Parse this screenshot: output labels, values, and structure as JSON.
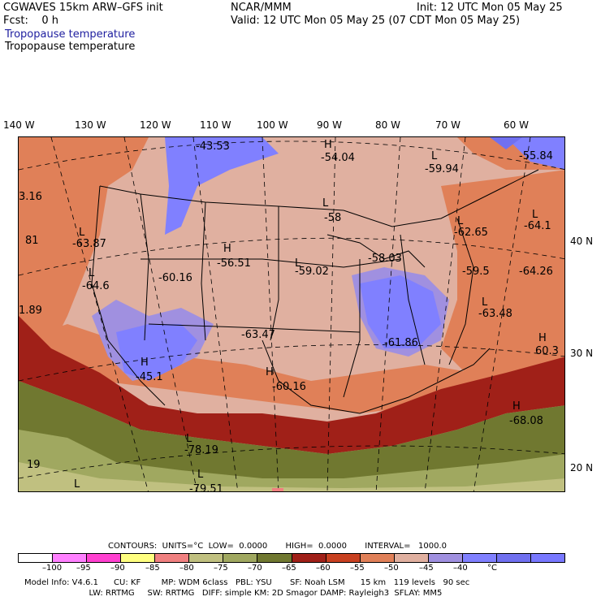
{
  "header": {
    "model": "CGWAVES 15km ARW–GFS init",
    "org": "NCAR/MMM",
    "init": "Init: 12 UTC Mon 05 May 25",
    "fcst": "Fcst:    0 h",
    "valid": "Valid: 12 UTC Mon 05 May 25 (07 CDT Mon 05 May 25)",
    "field_blue": "Tropopause temperature",
    "field_black": "Tropopause temperature"
  },
  "longitudes": [
    "140 W",
    "130 W",
    "120 W",
    "110 W",
    "100 W",
    "90 W",
    "80 W",
    "70 W",
    "60 W"
  ],
  "latitudes": [
    "40 N",
    "30 N",
    "20 N"
  ],
  "map_labels": [
    {
      "t": "-43.53"
    },
    {
      "t": "H"
    },
    {
      "t": "-54.04"
    },
    {
      "t": "L"
    },
    {
      "t": "-59.94"
    },
    {
      "t": "-55.84"
    },
    {
      "t": "3.16"
    },
    {
      "t": "L"
    },
    {
      "t": "-58"
    },
    {
      "t": "L"
    },
    {
      "t": "-62.65"
    },
    {
      "t": "L"
    },
    {
      "t": "-64.1"
    },
    {
      "t": "81"
    },
    {
      "t": "L"
    },
    {
      "t": "-63.87"
    },
    {
      "t": "H"
    },
    {
      "t": "-56.51"
    },
    {
      "t": "-58.03"
    },
    {
      "t": "L"
    },
    {
      "t": "-59.02"
    },
    {
      "t": "-59.5"
    },
    {
      "t": "-64.26"
    },
    {
      "t": "L"
    },
    {
      "t": "-64.6"
    },
    {
      "t": "-60.16"
    },
    {
      "t": "1.89"
    },
    {
      "t": "L"
    },
    {
      "t": "-63.48"
    },
    {
      "t": "-63.47"
    },
    {
      "t": "H"
    },
    {
      "t": "-61.86"
    },
    {
      "t": "60.3"
    },
    {
      "t": "H"
    },
    {
      "t": "-45.1"
    },
    {
      "t": "H"
    },
    {
      "t": "-60.16"
    },
    {
      "t": "H"
    },
    {
      "t": "-68.08"
    },
    {
      "t": "L"
    },
    {
      "t": "-78.19"
    },
    {
      "t": "19"
    },
    {
      "t": "L"
    },
    {
      "t": "L"
    },
    {
      "t": "-79.51"
    }
  ],
  "contour_info": "CONTOURS:  UNITS=°C  LOW=  0.0000       HIGH=  0.0000       INTERVAL=   1000.0",
  "colorbar": {
    "colors": [
      "#ffffff",
      "#ff80ff",
      "#ff40d0",
      "#ffff80",
      "#f08080",
      "#c0c080",
      "#a0a860",
      "#707830",
      "#a02018",
      "#c84020",
      "#e08058",
      "#e0b0a0",
      "#a090e0",
      "#8080ff",
      "#7070f0",
      "#7878ff"
    ],
    "ticks": [
      "–100",
      "–95",
      "–90",
      "–85",
      "–80",
      "–75",
      "–70",
      "–65",
      "–60",
      "–55",
      "–50",
      "–45",
      "–40",
      "°C"
    ]
  },
  "footer": {
    "line1": "Model Info: V4.6.1      CU: KF        MP: WDM 6class   PBL: YSU       SF: Noah LSM      15 km   119 levels   90 sec",
    "line2": "                         LW: RRTMG     SW: RRTMG   DIFF: simple KM: 2D Smagor DAMP: Rayleigh3  SFLAY: MM5"
  }
}
